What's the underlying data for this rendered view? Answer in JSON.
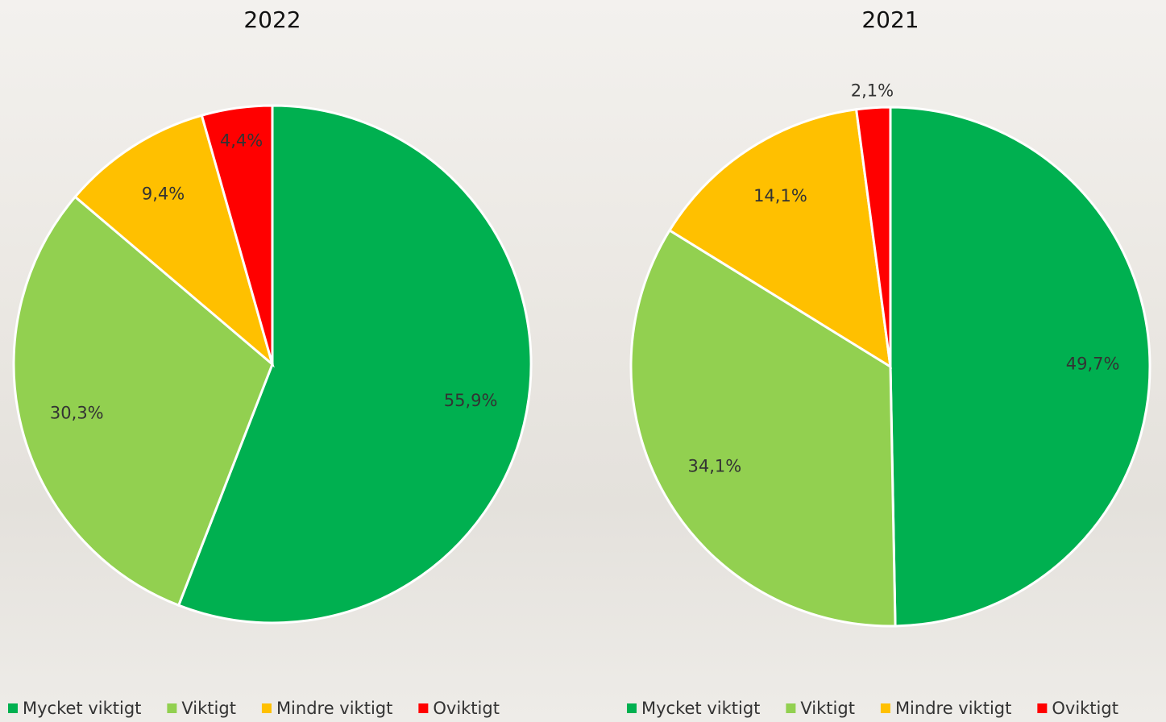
{
  "chart_data": [
    {
      "type": "pie",
      "title": "2022",
      "categories": [
        "Mycket viktigt",
        "Viktigt",
        "Mindre viktigt",
        "Oviktigt"
      ],
      "values": [
        55.9,
        30.3,
        9.4,
        4.4
      ],
      "value_labels": [
        "55,9%",
        "30,3%",
        "9,4%",
        "4,4%"
      ],
      "colors": [
        "#00b050",
        "#92d050",
        "#ffc000",
        "#ff0000"
      ],
      "legend": "bottom"
    },
    {
      "type": "pie",
      "title": "2021",
      "categories": [
        "Mycket viktigt",
        "Viktigt",
        "Mindre viktigt",
        "Oviktigt"
      ],
      "values": [
        49.7,
        34.1,
        14.1,
        2.1
      ],
      "value_labels": [
        "49,7%",
        "34,1%",
        "14,1%",
        "2,1%"
      ],
      "colors": [
        "#00b050",
        "#92d050",
        "#ffc000",
        "#ff0000"
      ],
      "legend": "bottom"
    }
  ]
}
